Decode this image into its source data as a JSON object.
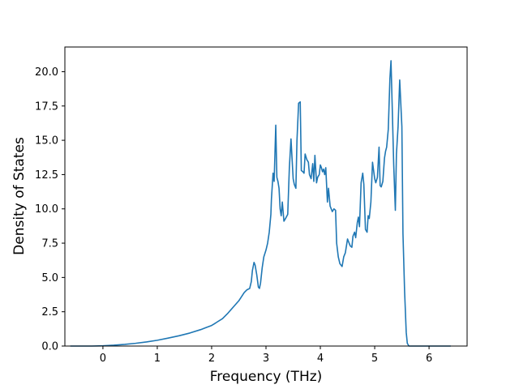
{
  "chart_data": {
    "type": "line",
    "xlabel": "Frequency (THz)",
    "ylabel": "Density of States",
    "xlim": [
      -0.7,
      6.7
    ],
    "ylim": [
      0.0,
      21.8
    ],
    "xticks": [
      0,
      1,
      2,
      3,
      4,
      5,
      6
    ],
    "yticks": [
      0.0,
      2.5,
      5.0,
      7.5,
      10.0,
      12.5,
      15.0,
      17.5,
      20.0
    ],
    "xtick_labels": [
      "0",
      "1",
      "2",
      "3",
      "4",
      "5",
      "6"
    ],
    "ytick_labels": [
      "0.0",
      "2.5",
      "5.0",
      "7.5",
      "10.0",
      "12.5",
      "15.0",
      "17.5",
      "20.0"
    ],
    "grid": false,
    "legend": "none",
    "line_color": "#1f77b4",
    "series": [
      {
        "x": [
          -0.6,
          -0.2,
          0.0,
          0.2,
          0.4,
          0.6,
          0.8,
          1.0,
          1.2,
          1.4,
          1.6,
          1.8,
          1.9,
          2.0,
          2.05,
          2.1,
          2.2,
          2.3,
          2.4,
          2.5,
          2.6,
          2.65,
          2.7,
          2.73,
          2.75,
          2.78,
          2.8,
          2.83,
          2.86,
          2.88,
          2.9,
          2.93,
          2.96,
          3.0,
          3.03,
          3.06,
          3.09,
          3.1,
          3.13,
          3.15,
          3.18,
          3.2,
          3.22,
          3.24,
          3.26,
          3.28,
          3.3,
          3.33,
          3.36,
          3.4,
          3.43,
          3.46,
          3.5,
          3.52,
          3.55,
          3.57,
          3.6,
          3.63,
          3.65,
          3.68,
          3.7,
          3.72,
          3.75,
          3.78,
          3.8,
          3.83,
          3.86,
          3.88,
          3.9,
          3.93,
          3.95,
          3.98,
          4.0,
          4.02,
          4.04,
          4.06,
          4.08,
          4.1,
          4.13,
          4.15,
          4.18,
          4.2,
          4.22,
          4.25,
          4.28,
          4.3,
          4.33,
          4.36,
          4.4,
          4.43,
          4.46,
          4.5,
          4.52,
          4.55,
          4.58,
          4.6,
          4.63,
          4.65,
          4.68,
          4.7,
          4.72,
          4.75,
          4.78,
          4.8,
          4.83,
          4.86,
          4.88,
          4.9,
          4.93,
          4.96,
          5.0,
          5.02,
          5.05,
          5.08,
          5.1,
          5.12,
          5.15,
          5.18,
          5.2,
          5.22,
          5.25,
          5.28,
          5.3,
          5.32,
          5.35,
          5.38,
          5.4,
          5.43,
          5.46,
          5.5,
          5.52,
          5.55,
          5.58,
          5.6,
          5.63,
          5.66,
          5.7,
          5.73,
          5.76,
          5.8,
          5.83,
          5.9,
          6.4
        ],
        "y": [
          0.0,
          0.0,
          0.02,
          0.06,
          0.12,
          0.2,
          0.3,
          0.42,
          0.58,
          0.75,
          0.95,
          1.2,
          1.35,
          1.5,
          1.62,
          1.75,
          2.0,
          2.4,
          2.85,
          3.3,
          3.9,
          4.1,
          4.2,
          4.7,
          5.5,
          6.1,
          5.9,
          5.2,
          4.3,
          4.2,
          4.6,
          5.7,
          6.5,
          7.0,
          7.5,
          8.3,
          9.6,
          10.7,
          12.6,
          12.0,
          16.1,
          12.3,
          12.0,
          11.5,
          10.0,
          9.5,
          10.5,
          9.1,
          9.3,
          9.6,
          13.0,
          15.1,
          12.2,
          11.8,
          11.5,
          15.0,
          17.7,
          17.8,
          12.8,
          12.7,
          12.6,
          14.0,
          13.6,
          13.4,
          12.5,
          12.2,
          13.3,
          12.0,
          13.9,
          11.9,
          12.3,
          12.5,
          13.2,
          13.0,
          12.7,
          12.9,
          12.5,
          13.0,
          10.5,
          11.5,
          10.2,
          10.0,
          9.8,
          10.0,
          9.9,
          7.5,
          6.5,
          6.0,
          5.8,
          6.5,
          6.8,
          7.8,
          7.6,
          7.3,
          7.2,
          8.0,
          8.3,
          7.9,
          9.0,
          9.4,
          8.7,
          11.9,
          12.6,
          11.8,
          8.5,
          8.3,
          9.5,
          9.3,
          10.5,
          13.4,
          12.2,
          11.9,
          12.3,
          14.5,
          11.7,
          11.6,
          12.0,
          13.7,
          14.2,
          14.5,
          15.8,
          19.5,
          20.8,
          17.8,
          13.2,
          9.9,
          14.0,
          16.0,
          19.4,
          16.0,
          8.2,
          4.0,
          1.0,
          0.2,
          0.0,
          0.0,
          0.0,
          0.0,
          0.0,
          0.0,
          0.0,
          0.0,
          0.0
        ]
      }
    ]
  }
}
